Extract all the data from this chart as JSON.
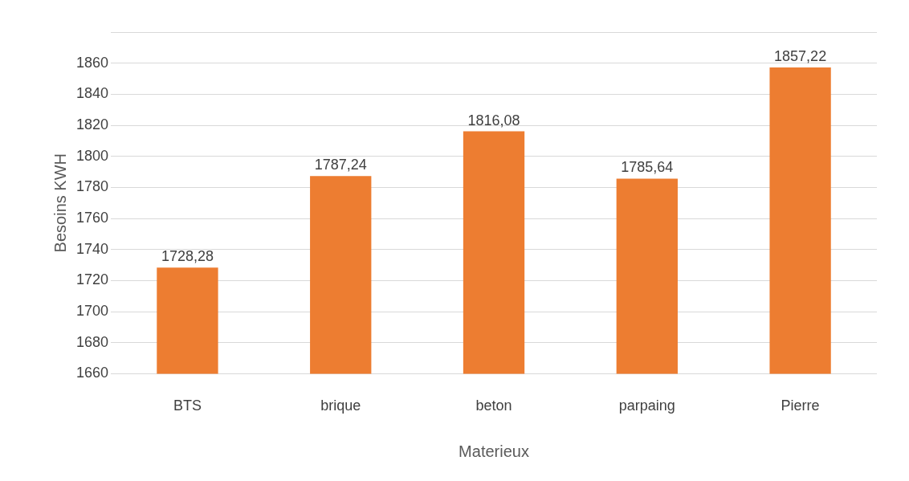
{
  "chart_data": {
    "type": "bar",
    "xlabel": "Materieux",
    "ylabel": "Besoins KWH",
    "categories": [
      "BTS",
      "brique",
      "beton",
      "parpaing",
      "Pierre"
    ],
    "values": [
      1728.28,
      1787.24,
      1816.08,
      1785.64,
      1857.22
    ],
    "value_labels": [
      "1728,28",
      "1787,24",
      "1816,08",
      "1785,64",
      "1857,22"
    ],
    "color": "#ed7d31",
    "ylim": [
      1660,
      1880
    ],
    "yticks": [
      1660,
      1680,
      1700,
      1720,
      1740,
      1760,
      1780,
      1800,
      1820,
      1840,
      1860,
      {
        "value": 1880,
        "label": null
      }
    ],
    "grid": "y"
  }
}
